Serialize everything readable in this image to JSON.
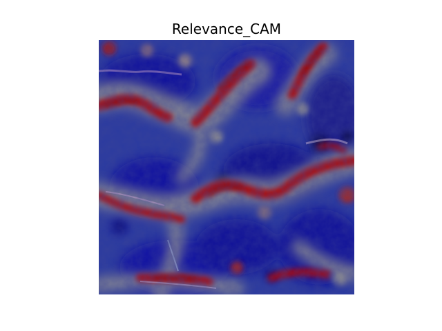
{
  "figure": {
    "title": "Relevance_CAM",
    "colors": {
      "background": "#ffffff",
      "title_text": "#000000",
      "heatmap_low": "#00008b",
      "heatmap_mid": "#8c8c8c",
      "heatmap_high": "#b00000"
    }
  }
}
